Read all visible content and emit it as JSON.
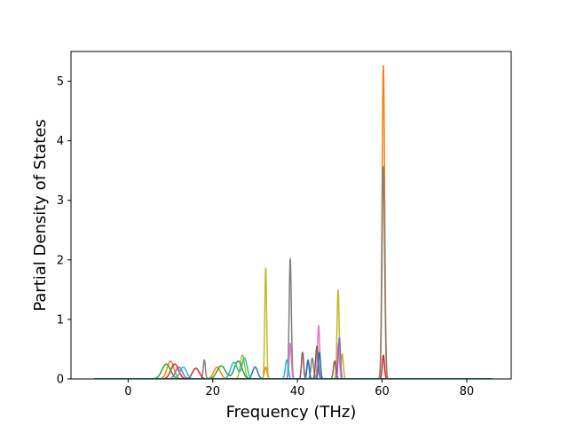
{
  "chart_data": {
    "type": "line",
    "title": "",
    "xlabel": "Frequency (THz)",
    "ylabel": "Partial Density of States",
    "xlim": [
      -13.5,
      90.5
    ],
    "ylim": [
      0,
      5.5
    ],
    "xticks": [
      0,
      20,
      40,
      60,
      80
    ],
    "yticks": [
      0,
      1,
      2,
      3,
      4,
      5
    ],
    "xtick_labels": [
      "0",
      "20",
      "40",
      "60",
      "80"
    ],
    "ytick_labels": [
      "0",
      "1",
      "2",
      "3",
      "4",
      "5"
    ],
    "grid": false,
    "legend": "none",
    "x_data_range": [
      -8,
      86
    ],
    "palette": [
      "#1f77b4",
      "#ff7f0e",
      "#2ca02c",
      "#d62728",
      "#9467bd",
      "#8c564b",
      "#e377c2",
      "#7f7f7f",
      "#bcbd22",
      "#17becf"
    ],
    "series": [
      {
        "color": "#ff7f0e",
        "peaks": [
          [
            60.3,
            5.28,
            0.3
          ],
          [
            10,
            0.3,
            0.8
          ],
          [
            21,
            0.2,
            0.8
          ],
          [
            32.5,
            0.2,
            0.3
          ]
        ]
      },
      {
        "color": "#7f7f7f",
        "peaks": [
          [
            38.3,
            2.02,
            0.25
          ],
          [
            60.3,
            3.58,
            0.3
          ],
          [
            43.5,
            0.35,
            0.3
          ],
          [
            18,
            0.32,
            0.25
          ]
        ]
      },
      {
        "color": "#bcbd22",
        "peaks": [
          [
            32.5,
            1.87,
            0.22
          ],
          [
            49.6,
            1.5,
            0.25
          ],
          [
            27,
            0.4,
            0.5
          ],
          [
            50.6,
            0.42,
            0.25
          ]
        ]
      },
      {
        "color": "#e377c2",
        "peaks": [
          [
            45.0,
            0.9,
            0.25
          ],
          [
            38.3,
            0.6,
            0.25
          ],
          [
            49.7,
            0.6,
            0.25
          ]
        ]
      },
      {
        "color": "#8c564b",
        "peaks": [
          [
            44.6,
            0.55,
            0.3
          ],
          [
            41.2,
            0.45,
            0.25
          ],
          [
            48.8,
            0.3,
            0.3
          ]
        ]
      },
      {
        "color": "#9467bd",
        "peaks": [
          [
            49.9,
            0.7,
            0.25
          ],
          [
            42.5,
            0.3,
            0.3
          ],
          [
            12,
            0.2,
            0.8
          ]
        ]
      },
      {
        "color": "#d62728",
        "peaks": [
          [
            60.3,
            0.4,
            0.25
          ],
          [
            11,
            0.25,
            0.9
          ],
          [
            16,
            0.18,
            0.8
          ]
        ]
      },
      {
        "color": "#2ca02c",
        "peaks": [
          [
            9,
            0.25,
            1.0
          ],
          [
            22,
            0.22,
            1.0
          ],
          [
            26,
            0.3,
            0.9
          ]
        ]
      },
      {
        "color": "#1f77b4",
        "peaks": [
          [
            42.5,
            0.32,
            0.25
          ],
          [
            30,
            0.2,
            0.6
          ],
          [
            45.2,
            0.45,
            0.25
          ]
        ]
      },
      {
        "color": "#17becf",
        "peaks": [
          [
            37.5,
            0.32,
            0.35
          ],
          [
            27.5,
            0.35,
            0.6
          ],
          [
            25,
            0.28,
            0.8
          ],
          [
            13,
            0.2,
            0.8
          ]
        ]
      }
    ]
  }
}
